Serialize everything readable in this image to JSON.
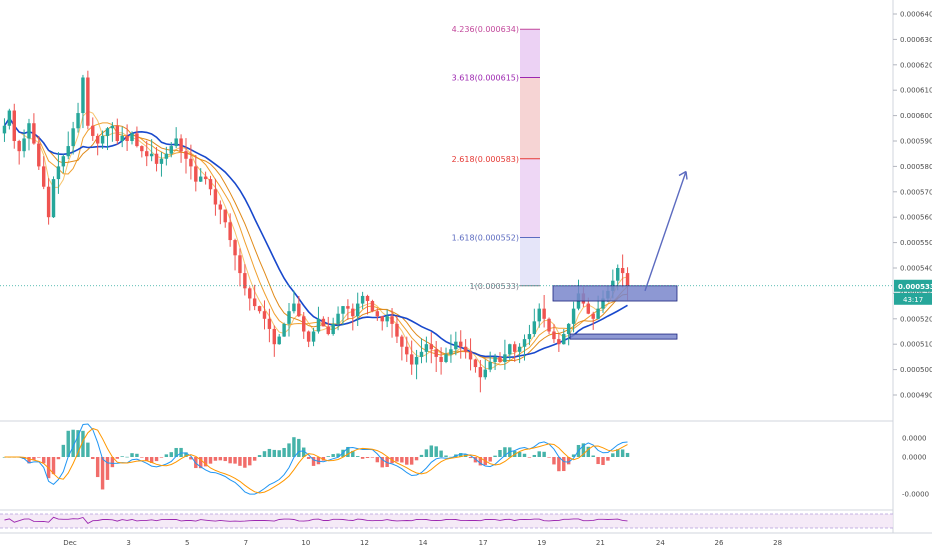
{
  "chart_data": {
    "type": "candlestick",
    "price_axis": {
      "ticks": [
        "0.000640",
        "0.000630",
        "0.000620",
        "0.000610",
        "0.000600",
        "0.000590",
        "0.000580",
        "0.000570",
        "0.000560",
        "0.000550",
        "0.000540",
        "0.000530",
        "0.000520",
        "0.000510",
        "0.000500",
        "0.000490"
      ],
      "range": [
        0.000485,
        0.000645
      ]
    },
    "time_axis": {
      "labels": [
        "Dec",
        "3",
        "5",
        "7",
        "10",
        "12",
        "14",
        "17",
        "19",
        "21",
        "24",
        "26",
        "28"
      ]
    },
    "current_price_label": "0.000533",
    "countdown_label": "43:17",
    "fib_levels": [
      {
        "label": "4.236(0.000634)",
        "value": 0.000634,
        "color": "#c2479b"
      },
      {
        "label": "3.618(0.000615)",
        "value": 0.000615,
        "color": "#9c27b0"
      },
      {
        "label": "2.618(0.000583)",
        "value": 0.000583,
        "color": "#e53935"
      },
      {
        "label": "1.618(0.000552)",
        "value": 0.000552,
        "color": "#5c6bc0"
      },
      {
        "label": "1(0.000533)",
        "value": 0.000533,
        "color": "#787b86"
      }
    ],
    "zones": [
      {
        "name": "upper",
        "top": 0.000533,
        "bottom": 0.000527
      },
      {
        "name": "lower",
        "top": 0.000514,
        "bottom": 0.000512
      }
    ],
    "arrow": {
      "from": [
        19.6,
        0.000531
      ],
      "to": [
        20.2,
        0.000578
      ]
    },
    "close_series": [
      0.000596,
      0.000602,
      0.00059,
      0.000586,
      0.000591,
      0.000597,
      0.000589,
      0.00058,
      0.000572,
      0.00056,
      0.000575,
      0.00058,
      0.000584,
      0.000588,
      0.000595,
      0.000601,
      0.000615,
      0.000596,
      0.000592,
      0.000589,
      0.000592,
      0.000595,
      0.000596,
      0.00059,
      0.000592,
      0.00059,
      0.000593,
      0.000588,
      0.000586,
      0.000584,
      0.000585,
      0.000581,
      0.000583,
      0.000585,
      0.000588,
      0.000591,
      0.000586,
      0.000583,
      0.00058,
      0.000574,
      0.000576,
      0.000575,
      0.000571,
      0.000565,
      0.000563,
      0.000558,
      0.000551,
      0.000545,
      0.000538,
      0.000532,
      0.000528,
      0.000525,
      0.000523,
      0.00052,
      0.000516,
      0.00051,
      0.000513,
      0.000518,
      0.000523,
      0.000526,
      0.000521,
      0.000515,
      0.000511,
      0.000515,
      0.00052,
      0.000517,
      0.000514,
      0.000518,
      0.000522,
      0.000525,
      0.000524,
      0.000521,
      0.000526,
      0.000529,
      0.000527,
      0.000523,
      0.000521,
      0.000519,
      0.000521,
      0.000518,
      0.000513,
      0.000509,
      0.000506,
      0.000502,
      0.000505,
      0.000507,
      0.00051,
      0.000508,
      0.000505,
      0.000503,
      0.000506,
      0.000508,
      0.000511,
      0.000509,
      0.000507,
      0.000504,
      0.000501,
      0.000497,
      0.0005,
      0.000503,
      0.000505,
      0.000503,
      0.000506,
      0.00051,
      0.000507,
      0.000509,
      0.000512,
      0.000514,
      0.000519,
      0.000524,
      0.00052,
      0.000515,
      0.000512,
      0.00051,
      0.000514,
      0.000518,
      0.000524,
      0.00053,
      0.000526,
      0.000522,
      0.00052,
      0.000524,
      0.000528,
      0.000531,
      0.000535,
      0.00054,
      0.000538,
      0.000533
    ],
    "macd_axis": {
      "ticks": [
        "0.0000",
        "0.0000",
        "-0.0000"
      ]
    },
    "colors": {
      "up": "#26a69a",
      "down": "#ef5350",
      "ma_blue": "#1848cc",
      "ema_orange": "#f5a623",
      "zone": "#3f51b5"
    }
  }
}
